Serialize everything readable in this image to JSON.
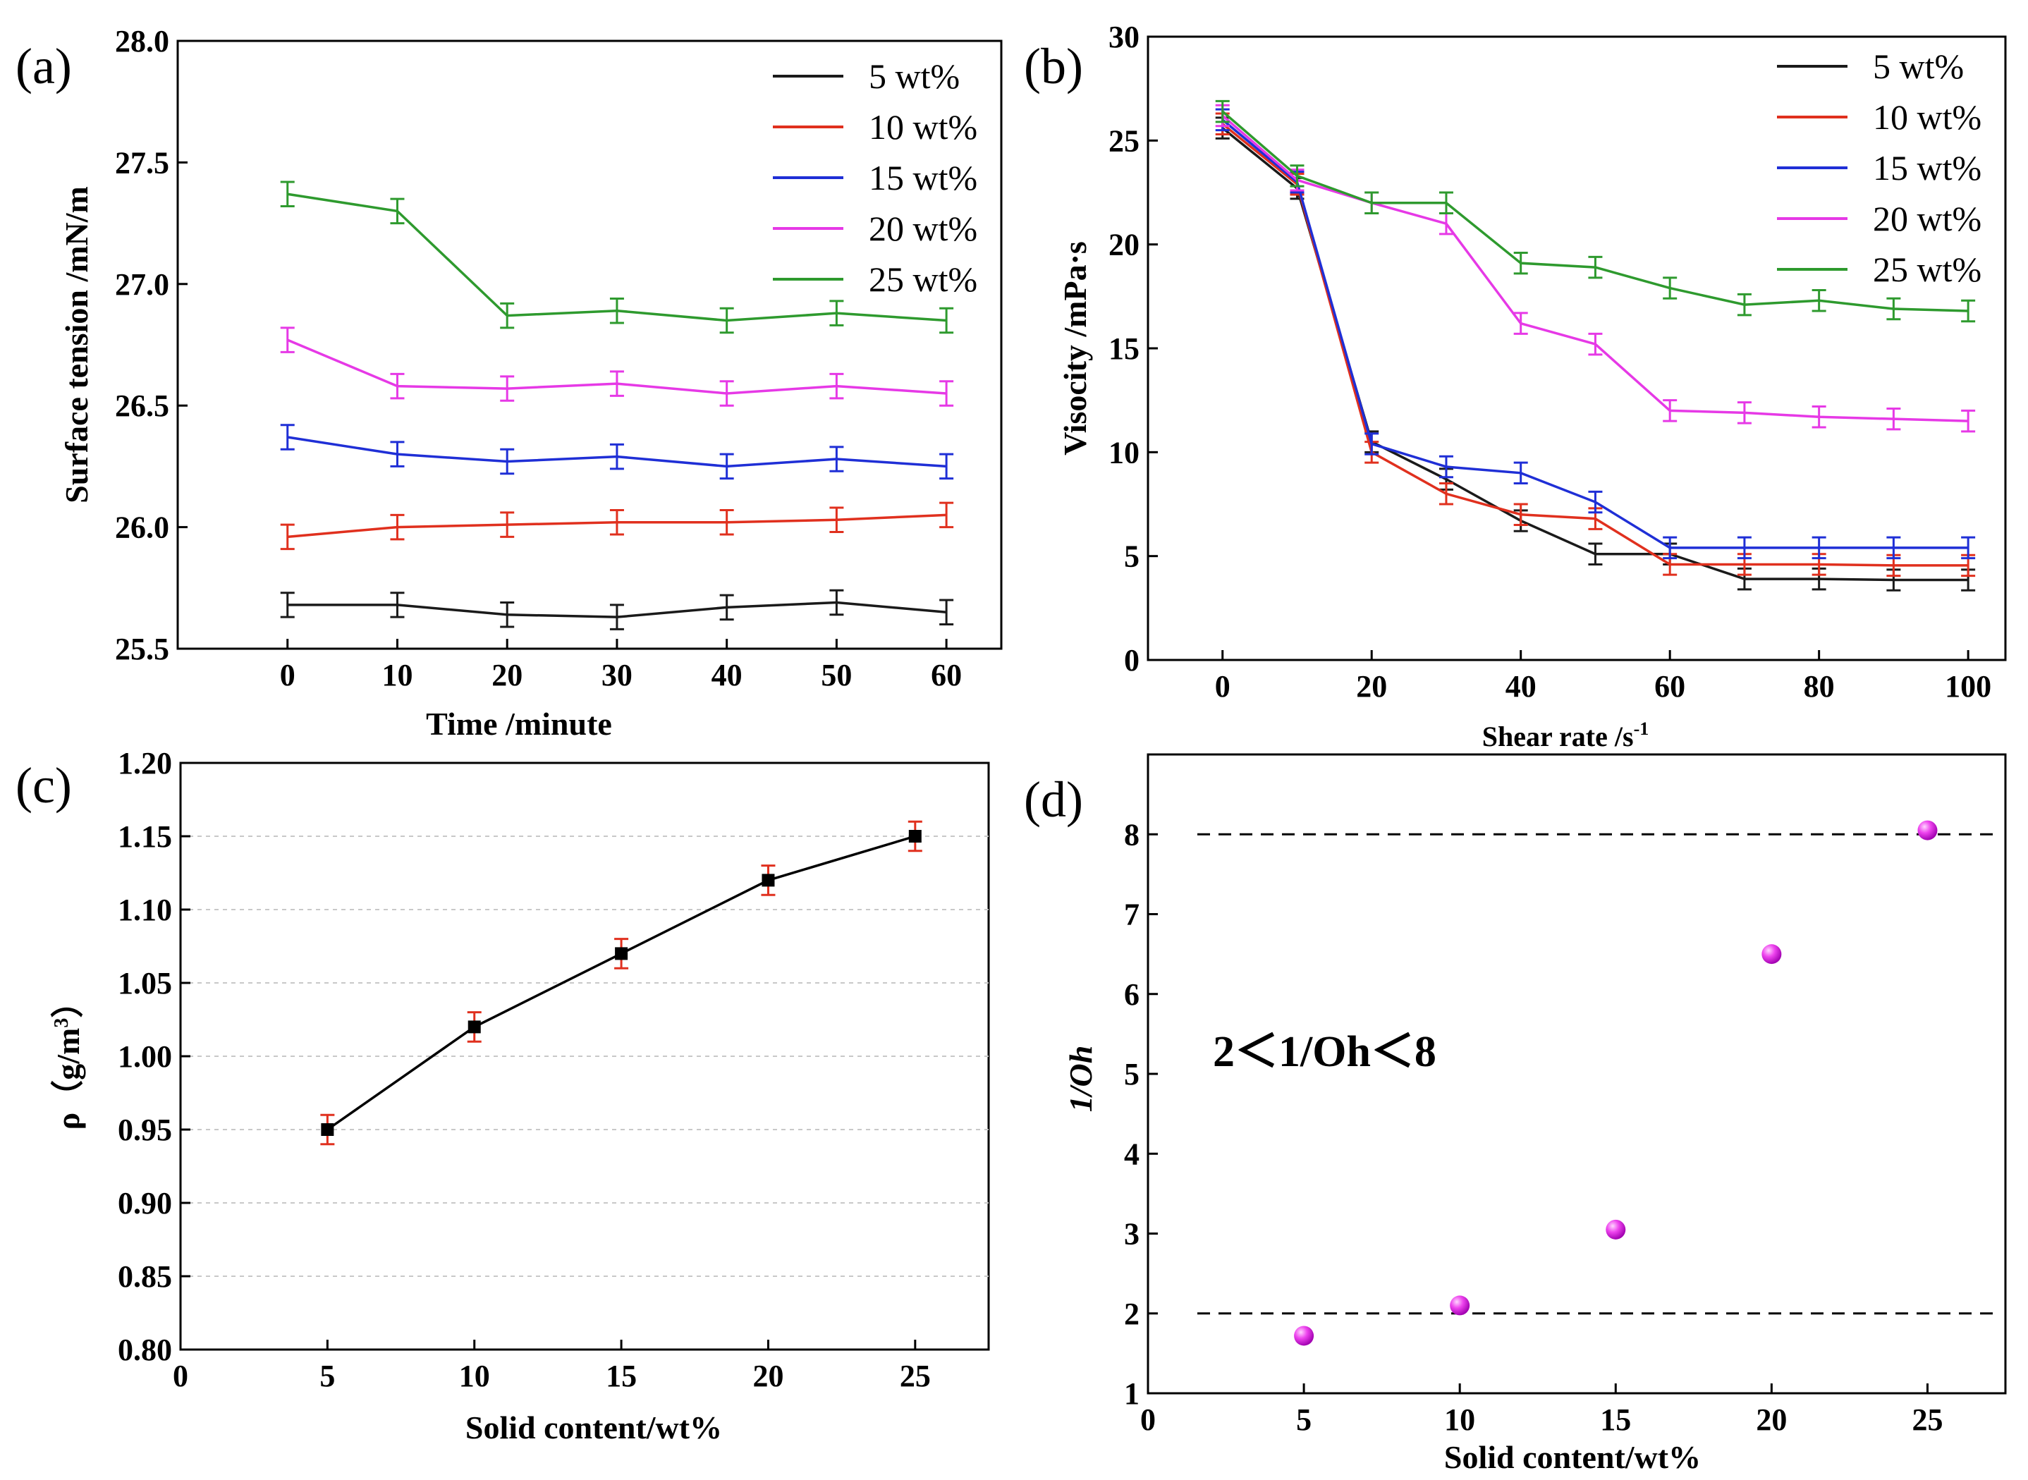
{
  "chart_data": [
    {
      "id": "a",
      "panel_label": "(a)",
      "type": "line",
      "title": "",
      "xlabel": "Time /minute",
      "ylabel": "Surface tension /mN/m",
      "xlim": [
        -10,
        65
      ],
      "ylim": [
        25.5,
        28.0
      ],
      "xticks": [
        0,
        10,
        20,
        30,
        40,
        50,
        60
      ],
      "xtick_labels": [
        "0",
        "10",
        "20",
        "30",
        "40",
        "50",
        "60"
      ],
      "yticks": [
        25.5,
        26.0,
        26.5,
        27.0,
        27.5,
        28.0
      ],
      "ytick_labels": [
        "25.5",
        "26.0",
        "26.5",
        "27.0",
        "27.5",
        "28.0"
      ],
      "grid": false,
      "legend_position": "top-right",
      "error": 0.05,
      "x": [
        0,
        10,
        20,
        30,
        40,
        50,
        60
      ],
      "series": [
        {
          "name": "5 wt%",
          "color": "#1a1a1a",
          "values": [
            25.68,
            25.68,
            25.64,
            25.63,
            25.67,
            25.69,
            25.65
          ]
        },
        {
          "name": "10 wt%",
          "color": "#e0301e",
          "values": [
            25.96,
            26.0,
            26.01,
            26.02,
            26.02,
            26.03,
            26.05
          ]
        },
        {
          "name": "15 wt%",
          "color": "#1f2fd6",
          "values": [
            26.37,
            26.3,
            26.27,
            26.29,
            26.25,
            26.28,
            26.25
          ]
        },
        {
          "name": "20 wt%",
          "color": "#e639e6",
          "values": [
            26.77,
            26.58,
            26.57,
            26.59,
            26.55,
            26.58,
            26.55
          ]
        },
        {
          "name": "25 wt%",
          "color": "#2e9a2e",
          "values": [
            27.37,
            27.3,
            26.87,
            26.89,
            26.85,
            26.88,
            26.85
          ]
        }
      ]
    },
    {
      "id": "b",
      "panel_label": "(b)",
      "type": "line",
      "title": "",
      "xlabel": "Shear rate /s",
      "xlabel_sup": "-1",
      "ylabel": "Visocity /mPa·s",
      "xlim": [
        -10,
        105
      ],
      "ylim": [
        0,
        30
      ],
      "xticks": [
        0,
        20,
        40,
        60,
        80,
        100
      ],
      "xtick_labels": [
        "0",
        "20",
        "40",
        "60",
        "80",
        "100"
      ],
      "yticks": [
        0,
        5,
        10,
        15,
        20,
        25,
        30
      ],
      "ytick_labels": [
        "0",
        "5",
        "10",
        "15",
        "20",
        "25",
        "30"
      ],
      "grid": false,
      "legend_position": "top-right",
      "error": 0.5,
      "x": [
        0,
        10,
        20,
        30,
        40,
        50,
        60,
        70,
        80,
        90,
        100
      ],
      "series": [
        {
          "name": "5 wt%",
          "color": "#1a1a1a",
          "values": [
            25.6,
            22.7,
            10.5,
            8.7,
            6.7,
            5.1,
            5.1,
            3.9,
            3.9,
            3.85,
            3.85
          ]
        },
        {
          "name": "10 wt%",
          "color": "#e0301e",
          "values": [
            25.8,
            22.9,
            10.0,
            8.0,
            7.0,
            6.8,
            4.6,
            4.6,
            4.6,
            4.55,
            4.55
          ]
        },
        {
          "name": "15 wt%",
          "color": "#1f2fd6",
          "values": [
            26.0,
            23.0,
            10.4,
            9.3,
            9.0,
            7.6,
            5.4,
            5.4,
            5.4,
            5.4,
            5.4
          ]
        },
        {
          "name": "20 wt%",
          "color": "#e639e6",
          "values": [
            26.2,
            23.1,
            22.0,
            21.0,
            16.2,
            15.2,
            12.0,
            11.9,
            11.7,
            11.6,
            11.5
          ]
        },
        {
          "name": "25 wt%",
          "color": "#2e9a2e",
          "values": [
            26.4,
            23.3,
            22.0,
            22.0,
            19.1,
            18.9,
            17.9,
            17.1,
            17.3,
            16.9,
            16.8
          ]
        }
      ]
    },
    {
      "id": "c",
      "panel_label": "(c)",
      "type": "line",
      "title": "",
      "xlabel": "Solid content/wt%",
      "ylabel": "ρ（g/m",
      "ylabel_sup": "3",
      "ylabel_end": "）",
      "xlim": [
        0,
        27.5
      ],
      "ylim": [
        0.8,
        1.2
      ],
      "xticks": [
        0,
        5,
        10,
        15,
        20,
        25
      ],
      "xtick_labels": [
        "0",
        "5",
        "10",
        "15",
        "20",
        "25"
      ],
      "yticks": [
        0.8,
        0.85,
        0.9,
        0.95,
        1.0,
        1.05,
        1.1,
        1.15,
        1.2
      ],
      "ytick_labels": [
        "0.80",
        "0.85",
        "0.90",
        "0.95",
        "1.00",
        "1.05",
        "1.10",
        "1.15",
        "1.20"
      ],
      "grid": true,
      "error": 0.01,
      "x": [
        5,
        10,
        15,
        20,
        25
      ],
      "series": [
        {
          "name": "density",
          "color": "#000000",
          "error_color": "#e0301e",
          "values": [
            0.95,
            1.02,
            1.07,
            1.12,
            1.15
          ]
        }
      ]
    },
    {
      "id": "d",
      "panel_label": "(d)",
      "type": "scatter",
      "title": "",
      "xlabel": "Solid content/wt%",
      "ylabel": "1/Oh",
      "xlim": [
        0,
        27.5
      ],
      "ylim": [
        1,
        9
      ],
      "xticks": [
        0,
        5,
        10,
        15,
        20,
        25
      ],
      "xtick_labels": [
        "0",
        "5",
        "10",
        "15",
        "20",
        "25"
      ],
      "yticks": [
        1,
        2,
        3,
        4,
        5,
        6,
        7,
        8
      ],
      "ytick_labels": [
        "1",
        "2",
        "3",
        "4",
        "5",
        "6",
        "7",
        "8"
      ],
      "grid": false,
      "reference_lines": [
        2,
        8
      ],
      "annotation": "2＜1/Oh＜8",
      "x": [
        5,
        10,
        15,
        20,
        25
      ],
      "series": [
        {
          "name": "1/Oh",
          "color": "#e020e8",
          "values": [
            1.72,
            2.1,
            3.05,
            6.5,
            8.05
          ]
        }
      ]
    }
  ]
}
